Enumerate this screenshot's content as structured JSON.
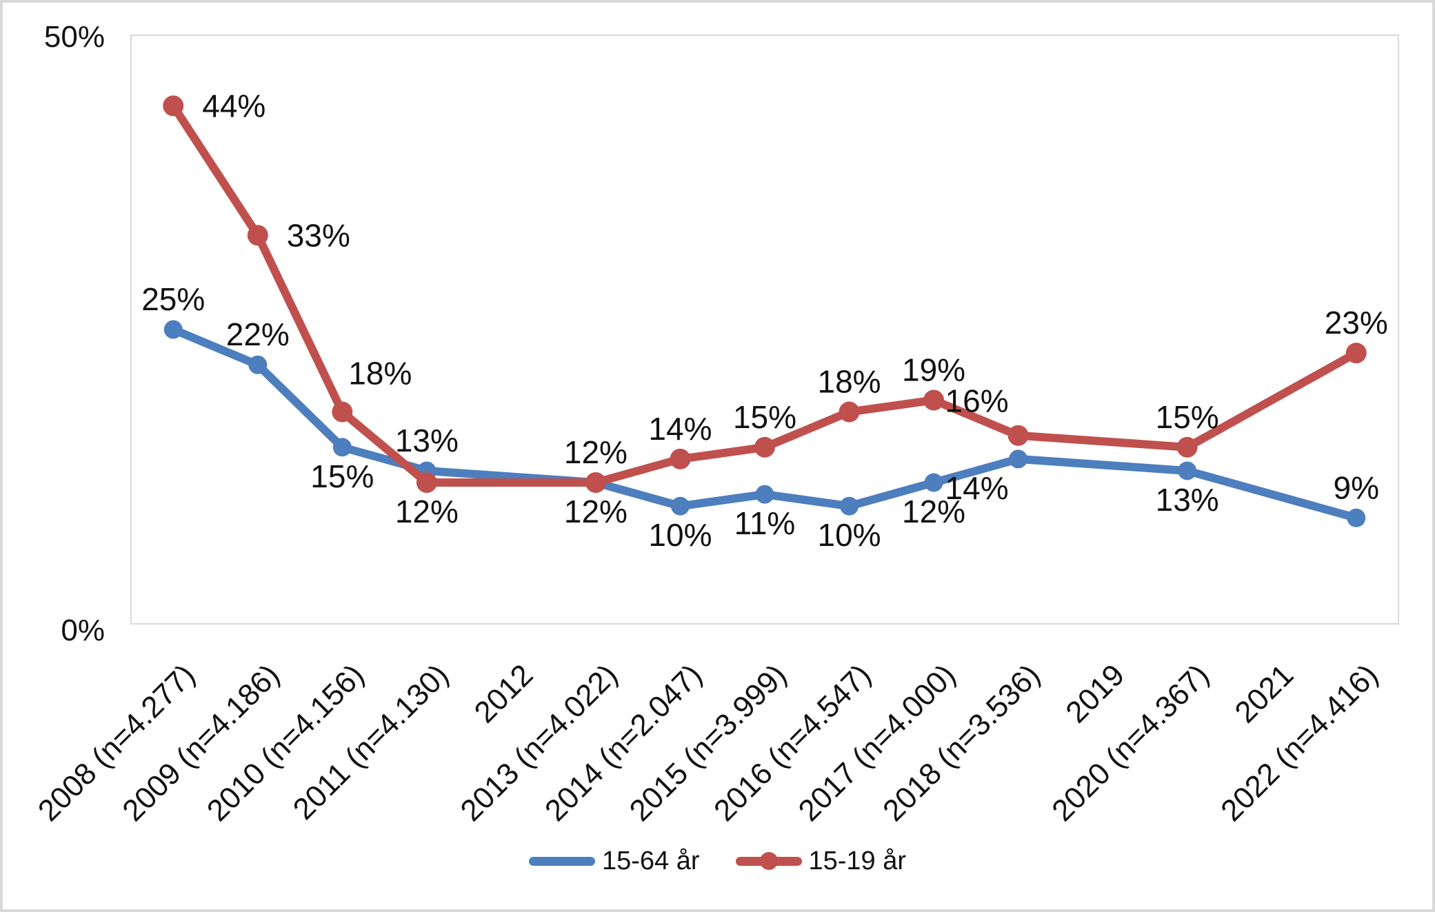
{
  "chart_data": {
    "type": "line",
    "title": "",
    "categories": [
      "2008 (n=4.277)",
      "2009 (n=4.186)",
      "2010 (n=4.156)",
      "2011 (n=4.130)",
      "2012",
      "2013 (n=4.022)",
      "2014 (n=2.047)",
      "2015 (n=3.999)",
      "2016 (n=4.547)",
      "2017 (n=4.000)",
      "2018 (n=3.536)",
      "2019",
      "2020 (n=4.367)",
      "2021",
      "2022 (n=4.416)"
    ],
    "series": [
      {
        "name": "15-64 år",
        "color": "#4D7EBE",
        "values": [
          25,
          22,
          15,
          13,
          null,
          12,
          10,
          11,
          10,
          12,
          14,
          null,
          13,
          null,
          9
        ],
        "label_positions": [
          "above",
          "above",
          "below",
          "above",
          null,
          "below",
          "below",
          "below",
          "below",
          "below",
          "below-left",
          null,
          "below",
          null,
          "above"
        ]
      },
      {
        "name": "15-19 år",
        "color": "#C0504D",
        "values": [
          44,
          33,
          18,
          12,
          null,
          12,
          14,
          15,
          18,
          19,
          16,
          null,
          15,
          null,
          23
        ],
        "label_positions": [
          "right",
          "right",
          "above-right",
          "below",
          null,
          "above",
          "above",
          "above",
          "above",
          "above",
          "above-left",
          null,
          "above",
          null,
          "above"
        ]
      }
    ],
    "ylim": [
      0,
      50
    ],
    "yticks": [
      {
        "value": 50,
        "label": "50%"
      },
      {
        "value": 0,
        "label": "0%"
      }
    ],
    "data_label_suffix": "%",
    "grid": false,
    "legend_position": "bottom-center",
    "plot_border_color": "#D9D9D9",
    "text_color": "#111111",
    "background_color": "#FFFFFF"
  }
}
